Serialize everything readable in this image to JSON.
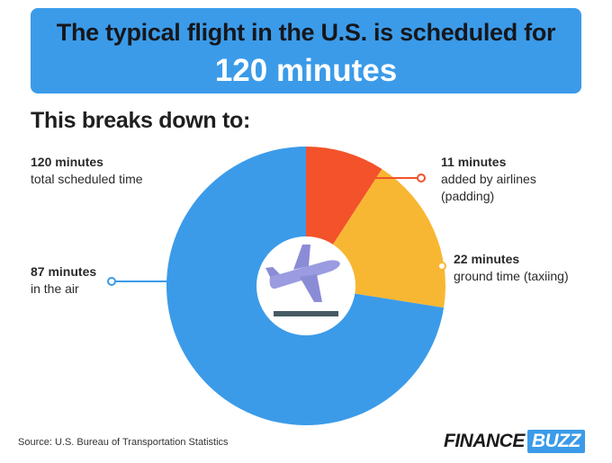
{
  "banner": {
    "line1": "The typical flight in the U.S. is scheduled for",
    "line2": "120 minutes"
  },
  "subheading": "This breaks down to:",
  "labels": {
    "total": {
      "value": "120 minutes",
      "text": "total scheduled time"
    },
    "padding": {
      "value": "11 minutes",
      "text1": "added by airlines",
      "text2": "(padding)"
    },
    "ground": {
      "value": "22 minutes",
      "text": "ground time (taxiing)"
    },
    "air": {
      "value": "87 minutes",
      "text": "in the air"
    }
  },
  "chart_data": {
    "type": "pie",
    "donut": true,
    "total": 120,
    "unit": "minutes",
    "slices": [
      {
        "label": "added by airlines (padding)",
        "value": 11,
        "color": "#f3522a"
      },
      {
        "label": "ground time (taxiing)",
        "value": 22,
        "color": "#f8b733"
      },
      {
        "label": "in the air",
        "value": 87,
        "color": "#3b9be9"
      }
    ],
    "center_icon": "airplane-takeoff-icon"
  },
  "source": "Source: U.S. Bureau of Transportation Statistics",
  "logo": {
    "part1": "FINANCE",
    "part2": "BUZZ"
  },
  "colors": {
    "banner": "#3b9be9",
    "padding": "#f3522a",
    "ground": "#f8b733",
    "air": "#3b9be9",
    "plane": "#9a9be0",
    "runway": "#455a64"
  }
}
